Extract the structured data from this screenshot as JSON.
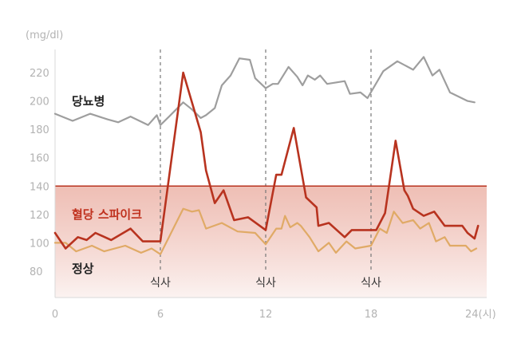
{
  "chart_data": {
    "type": "line",
    "ylabel": "(mg/dl)",
    "xlabel": "(시)",
    "xlim": [
      0,
      24
    ],
    "ylim": [
      60,
      235
    ],
    "x_ticks": [
      0,
      6,
      12,
      18,
      24
    ],
    "x_tick_labels": [
      "0",
      "6",
      "12",
      "18",
      "24(시)"
    ],
    "y_ticks": [
      80,
      100,
      120,
      140,
      160,
      180,
      200,
      220
    ],
    "threshold": 140,
    "meal_times": [
      6,
      12,
      18
    ],
    "meal_label": "식사",
    "colors": {
      "diabetes": "#9e9e9e",
      "spike": "#b8331f",
      "normal": "#e0aa66",
      "threshold_line": "#b8331f",
      "band_top": "#e9a99c",
      "band_bottom": "#fbf1ef",
      "meal_line": "#777777"
    },
    "series": [
      {
        "key": "diabetes",
        "name": "당뇨병",
        "points": [
          [
            0,
            191
          ],
          [
            1,
            186
          ],
          [
            2,
            191
          ],
          [
            3,
            187
          ],
          [
            3.6,
            185
          ],
          [
            4.3,
            189
          ],
          [
            5.3,
            183
          ],
          [
            5.8,
            190
          ],
          [
            6,
            183
          ],
          [
            6.5,
            189
          ],
          [
            7.3,
            199
          ],
          [
            7.8,
            194
          ],
          [
            8.3,
            188
          ],
          [
            8.6,
            190
          ],
          [
            9.1,
            195
          ],
          [
            9.5,
            211
          ],
          [
            10,
            218
          ],
          [
            10.5,
            230
          ],
          [
            11.1,
            229
          ],
          [
            11.4,
            216
          ],
          [
            12,
            209
          ],
          [
            12.4,
            212
          ],
          [
            12.7,
            212
          ],
          [
            13.3,
            224
          ],
          [
            13.8,
            217
          ],
          [
            14.1,
            211
          ],
          [
            14.4,
            218
          ],
          [
            14.8,
            215
          ],
          [
            15.1,
            218
          ],
          [
            15.5,
            212
          ],
          [
            16.5,
            214
          ],
          [
            16.8,
            205
          ],
          [
            17.4,
            206
          ],
          [
            17.8,
            202
          ],
          [
            18.7,
            221
          ],
          [
            19.5,
            228
          ],
          [
            20.4,
            222
          ],
          [
            21,
            231
          ],
          [
            21.5,
            218
          ],
          [
            21.9,
            222
          ],
          [
            22.5,
            206
          ],
          [
            23.5,
            200
          ],
          [
            23.9,
            199
          ]
        ]
      },
      {
        "key": "spike",
        "name": "혈당 스파이크",
        "points": [
          [
            0,
            107
          ],
          [
            0.6,
            96
          ],
          [
            1.3,
            104
          ],
          [
            1.8,
            102
          ],
          [
            2.3,
            107
          ],
          [
            3.2,
            102
          ],
          [
            4.3,
            110
          ],
          [
            5,
            101
          ],
          [
            6,
            101
          ],
          [
            7.3,
            220
          ],
          [
            8.3,
            178
          ],
          [
            8.6,
            151
          ],
          [
            9.1,
            128
          ],
          [
            9.6,
            137
          ],
          [
            10.2,
            116
          ],
          [
            11,
            118
          ],
          [
            12,
            109
          ],
          [
            12.6,
            148
          ],
          [
            12.9,
            148
          ],
          [
            13.6,
            181
          ],
          [
            14.3,
            132
          ],
          [
            14.9,
            125
          ],
          [
            15,
            112
          ],
          [
            15.6,
            114
          ],
          [
            16.5,
            104
          ],
          [
            16.9,
            109
          ],
          [
            17.9,
            109
          ],
          [
            18.3,
            109
          ],
          [
            18.8,
            121
          ],
          [
            19.4,
            172
          ],
          [
            19.9,
            137
          ],
          [
            20.1,
            133
          ],
          [
            20.4,
            124
          ],
          [
            21,
            119
          ],
          [
            21.6,
            122
          ],
          [
            22.2,
            112
          ],
          [
            23.2,
            112
          ],
          [
            23.5,
            107
          ],
          [
            23.9,
            103
          ],
          [
            24.1,
            112
          ]
        ]
      },
      {
        "key": "normal",
        "name": "정상",
        "points": [
          [
            0,
            100
          ],
          [
            0.6,
            100
          ],
          [
            1.2,
            94
          ],
          [
            2.1,
            98
          ],
          [
            2.8,
            94
          ],
          [
            4,
            98
          ],
          [
            4.9,
            93
          ],
          [
            5.5,
            96
          ],
          [
            6,
            92
          ],
          [
            7.3,
            124
          ],
          [
            7.8,
            122
          ],
          [
            8.2,
            123
          ],
          [
            8.6,
            110
          ],
          [
            9.5,
            114
          ],
          [
            10.4,
            108
          ],
          [
            11.4,
            107
          ],
          [
            12,
            99
          ],
          [
            12.6,
            110
          ],
          [
            12.9,
            110
          ],
          [
            13.1,
            119
          ],
          [
            13.4,
            111
          ],
          [
            13.8,
            114
          ],
          [
            14,
            112
          ],
          [
            14.5,
            104
          ],
          [
            15,
            94
          ],
          [
            15.6,
            100
          ],
          [
            16,
            93
          ],
          [
            16.6,
            101
          ],
          [
            17.1,
            96
          ],
          [
            18,
            98
          ],
          [
            18.5,
            110
          ],
          [
            18.9,
            107
          ],
          [
            19.3,
            122
          ],
          [
            19.8,
            114
          ],
          [
            20.4,
            116
          ],
          [
            20.8,
            110
          ],
          [
            21.3,
            114
          ],
          [
            21.7,
            101
          ],
          [
            22.2,
            104
          ],
          [
            22.5,
            98
          ],
          [
            23.4,
            98
          ],
          [
            23.7,
            94
          ],
          [
            24,
            96
          ]
        ]
      }
    ]
  }
}
